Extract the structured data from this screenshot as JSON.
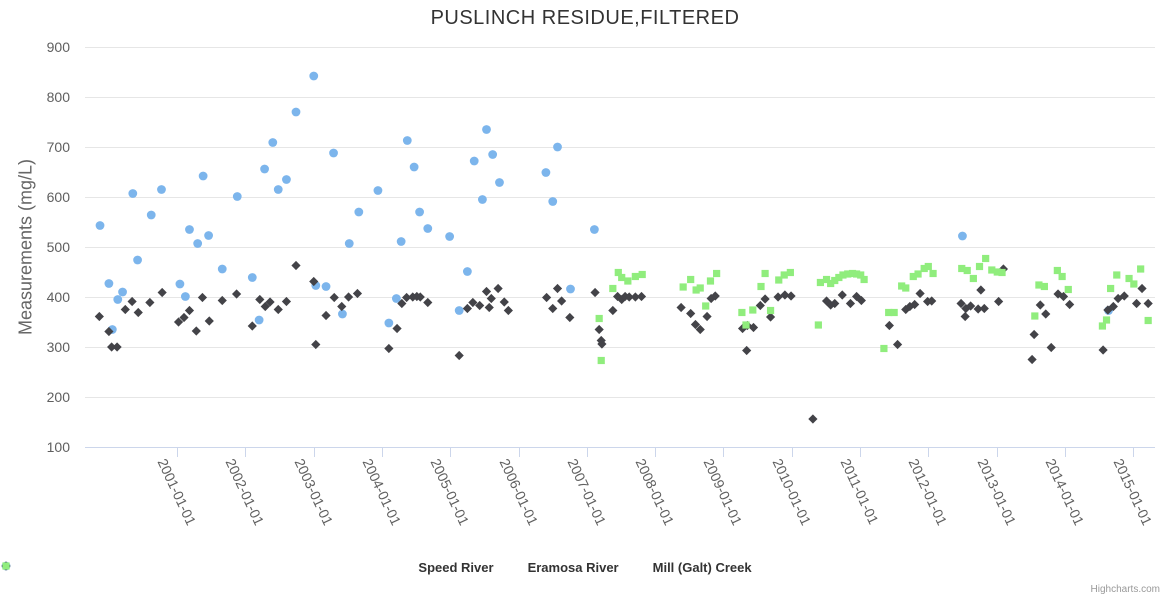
{
  "chart_data": {
    "type": "scatter",
    "title": "PUSLINCH RESIDUE,FILTERED",
    "ylabel": "Measurements (mg/L)",
    "credit": "Highcharts.com",
    "ylim": [
      100,
      900
    ],
    "yticks": [
      100,
      200,
      300,
      400,
      500,
      600,
      700,
      800,
      900
    ],
    "xlim": [
      1999.65,
      2015.32
    ],
    "xticks": [
      2001,
      2002,
      2003,
      2004,
      2005,
      2006,
      2007,
      2008,
      2009,
      2010,
      2011,
      2012,
      2013,
      2014,
      2015
    ],
    "xtick_labels": [
      "2001-01-01",
      "2002-01-01",
      "2003-01-01",
      "2004-01-01",
      "2005-01-01",
      "2006-01-01",
      "2007-01-01",
      "2008-01-01",
      "2009-01-01",
      "2010-01-01",
      "2011-01-01",
      "2012-01-01",
      "2013-01-01",
      "2014-01-01",
      "2015-01-01"
    ],
    "grid": "horizontal",
    "legend_position": "bottom-center",
    "colors": {
      "gridline": "#e6e6e6",
      "axis_line": "#ccd6eb",
      "axis_label": "#606060",
      "title": "#333333",
      "legend_text": "#333333",
      "credit_text": "#999999"
    },
    "series": [
      {
        "name": "Speed River",
        "marker": "circle",
        "color": "#7cb5ec",
        "points": [
          [
            1999.87,
            543
          ],
          [
            2000.0,
            427
          ],
          [
            2000.05,
            335
          ],
          [
            2000.13,
            395
          ],
          [
            2000.2,
            410
          ],
          [
            2000.35,
            607
          ],
          [
            2000.42,
            474
          ],
          [
            2000.62,
            564
          ],
          [
            2000.77,
            615
          ],
          [
            2001.04,
            426
          ],
          [
            2001.12,
            401
          ],
          [
            2001.18,
            535
          ],
          [
            2001.3,
            507
          ],
          [
            2001.38,
            642
          ],
          [
            2001.46,
            523
          ],
          [
            2001.66,
            456
          ],
          [
            2001.88,
            601
          ],
          [
            2002.1,
            439
          ],
          [
            2002.2,
            354
          ],
          [
            2002.28,
            656
          ],
          [
            2002.4,
            709
          ],
          [
            2002.48,
            615
          ],
          [
            2002.6,
            635
          ],
          [
            2002.74,
            770
          ],
          [
            2003.0,
            842
          ],
          [
            2003.03,
            423
          ],
          [
            2003.18,
            421
          ],
          [
            2003.29,
            688
          ],
          [
            2003.42,
            366
          ],
          [
            2003.52,
            507
          ],
          [
            2003.66,
            570
          ],
          [
            2003.94,
            613
          ],
          [
            2004.1,
            348
          ],
          [
            2004.21,
            397
          ],
          [
            2004.28,
            511
          ],
          [
            2004.37,
            713
          ],
          [
            2004.47,
            660
          ],
          [
            2004.55,
            570
          ],
          [
            2004.67,
            537
          ],
          [
            2004.99,
            521
          ],
          [
            2005.13,
            373
          ],
          [
            2005.25,
            451
          ],
          [
            2005.35,
            672
          ],
          [
            2005.47,
            595
          ],
          [
            2005.53,
            735
          ],
          [
            2005.62,
            685
          ],
          [
            2005.72,
            629
          ],
          [
            2006.4,
            649
          ],
          [
            2006.5,
            591
          ],
          [
            2006.57,
            700
          ],
          [
            2006.76,
            416
          ],
          [
            2007.11,
            535
          ],
          [
            2012.5,
            522
          ],
          [
            2014.64,
            373
          ]
        ]
      },
      {
        "name": "Eramosa River",
        "marker": "diamond",
        "color": "#434348",
        "points": [
          [
            1999.86,
            361
          ],
          [
            2000.0,
            331
          ],
          [
            2000.04,
            300
          ],
          [
            2000.12,
            300
          ],
          [
            2000.24,
            375
          ],
          [
            2000.34,
            391
          ],
          [
            2000.43,
            369
          ],
          [
            2000.6,
            389
          ],
          [
            2000.78,
            409
          ],
          [
            2001.02,
            350
          ],
          [
            2001.1,
            359
          ],
          [
            2001.18,
            373
          ],
          [
            2001.28,
            332
          ],
          [
            2001.37,
            399
          ],
          [
            2001.47,
            352
          ],
          [
            2001.66,
            393
          ],
          [
            2001.87,
            406
          ],
          [
            2002.1,
            342
          ],
          [
            2002.21,
            395
          ],
          [
            2002.29,
            381
          ],
          [
            2002.36,
            390
          ],
          [
            2002.48,
            375
          ],
          [
            2002.6,
            391
          ],
          [
            2002.74,
            463
          ],
          [
            2003.0,
            431
          ],
          [
            2003.03,
            305
          ],
          [
            2003.18,
            363
          ],
          [
            2003.3,
            399
          ],
          [
            2003.41,
            381
          ],
          [
            2003.51,
            400
          ],
          [
            2003.64,
            407
          ],
          [
            2004.1,
            297
          ],
          [
            2004.22,
            337
          ],
          [
            2004.29,
            387
          ],
          [
            2004.36,
            399
          ],
          [
            2004.45,
            400
          ],
          [
            2004.51,
            401
          ],
          [
            2004.56,
            400
          ],
          [
            2004.67,
            389
          ],
          [
            2005.13,
            283
          ],
          [
            2005.25,
            377
          ],
          [
            2005.33,
            389
          ],
          [
            2005.43,
            383
          ],
          [
            2005.53,
            411
          ],
          [
            2005.57,
            379
          ],
          [
            2005.6,
            397
          ],
          [
            2005.7,
            417
          ],
          [
            2005.79,
            390
          ],
          [
            2005.85,
            373
          ],
          [
            2006.41,
            399
          ],
          [
            2006.5,
            377
          ],
          [
            2006.57,
            417
          ],
          [
            2006.63,
            392
          ],
          [
            2006.75,
            359
          ],
          [
            2007.12,
            409
          ],
          [
            2007.18,
            335
          ],
          [
            2007.21,
            313
          ],
          [
            2007.22,
            306
          ],
          [
            2007.38,
            373
          ],
          [
            2007.45,
            401
          ],
          [
            2007.51,
            395
          ],
          [
            2007.56,
            401
          ],
          [
            2007.62,
            400
          ],
          [
            2007.71,
            400
          ],
          [
            2007.8,
            401
          ],
          [
            2008.38,
            379
          ],
          [
            2008.52,
            367
          ],
          [
            2008.59,
            345
          ],
          [
            2008.66,
            335
          ],
          [
            2008.76,
            361
          ],
          [
            2008.82,
            397
          ],
          [
            2008.88,
            402
          ],
          [
            2009.28,
            337
          ],
          [
            2009.34,
            293
          ],
          [
            2009.35,
            343
          ],
          [
            2009.44,
            339
          ],
          [
            2009.54,
            383
          ],
          [
            2009.61,
            396
          ],
          [
            2009.69,
            360
          ],
          [
            2009.8,
            400
          ],
          [
            2009.9,
            404
          ],
          [
            2009.99,
            402
          ],
          [
            2010.31,
            156
          ],
          [
            2010.51,
            392
          ],
          [
            2010.57,
            384
          ],
          [
            2010.63,
            387
          ],
          [
            2010.74,
            404
          ],
          [
            2010.86,
            387
          ],
          [
            2010.95,
            401
          ],
          [
            2011.02,
            393
          ],
          [
            2011.43,
            343
          ],
          [
            2011.55,
            305
          ],
          [
            2011.67,
            375
          ],
          [
            2011.73,
            381
          ],
          [
            2011.8,
            385
          ],
          [
            2011.88,
            407
          ],
          [
            2011.99,
            391
          ],
          [
            2012.05,
            392
          ],
          [
            2012.48,
            387
          ],
          [
            2012.54,
            361
          ],
          [
            2012.55,
            377
          ],
          [
            2012.62,
            382
          ],
          [
            2012.73,
            376
          ],
          [
            2012.77,
            414
          ],
          [
            2012.82,
            377
          ],
          [
            2013.03,
            391
          ],
          [
            2013.1,
            456
          ],
          [
            2013.52,
            275
          ],
          [
            2013.55,
            325
          ],
          [
            2013.64,
            384
          ],
          [
            2013.72,
            366
          ],
          [
            2013.8,
            299
          ],
          [
            2013.9,
            406
          ],
          [
            2013.98,
            401
          ],
          [
            2014.07,
            385
          ],
          [
            2014.56,
            294
          ],
          [
            2014.63,
            374
          ],
          [
            2014.71,
            381
          ],
          [
            2014.78,
            397
          ],
          [
            2014.87,
            402
          ],
          [
            2015.05,
            387
          ],
          [
            2015.13,
            417
          ],
          [
            2015.22,
            387
          ]
        ]
      },
      {
        "name": "Mill (Galt) Creek",
        "marker": "square",
        "color": "#90ed7d",
        "points": [
          [
            2007.18,
            357
          ],
          [
            2007.21,
            273
          ],
          [
            2007.38,
            417
          ],
          [
            2007.46,
            449
          ],
          [
            2007.51,
            439
          ],
          [
            2007.6,
            432
          ],
          [
            2007.71,
            441
          ],
          [
            2007.81,
            445
          ],
          [
            2008.41,
            420
          ],
          [
            2008.52,
            435
          ],
          [
            2008.6,
            414
          ],
          [
            2008.66,
            418
          ],
          [
            2008.74,
            382
          ],
          [
            2008.81,
            432
          ],
          [
            2008.9,
            447
          ],
          [
            2009.27,
            369
          ],
          [
            2009.33,
            344
          ],
          [
            2009.43,
            374
          ],
          [
            2009.55,
            421
          ],
          [
            2009.61,
            447
          ],
          [
            2009.69,
            373
          ],
          [
            2009.81,
            434
          ],
          [
            2009.89,
            444
          ],
          [
            2009.98,
            449
          ],
          [
            2010.39,
            344
          ],
          [
            2010.42,
            429
          ],
          [
            2010.51,
            435
          ],
          [
            2010.57,
            427
          ],
          [
            2010.63,
            433
          ],
          [
            2010.69,
            439
          ],
          [
            2010.75,
            444
          ],
          [
            2010.82,
            446
          ],
          [
            2010.89,
            447
          ],
          [
            2010.95,
            446
          ],
          [
            2011.01,
            444
          ],
          [
            2011.06,
            435
          ],
          [
            2011.35,
            297
          ],
          [
            2011.42,
            369
          ],
          [
            2011.5,
            369
          ],
          [
            2011.61,
            422
          ],
          [
            2011.67,
            418
          ],
          [
            2011.78,
            441
          ],
          [
            2011.85,
            446
          ],
          [
            2011.94,
            457
          ],
          [
            2012.0,
            461
          ],
          [
            2012.07,
            447
          ],
          [
            2012.49,
            457
          ],
          [
            2012.57,
            453
          ],
          [
            2012.66,
            437
          ],
          [
            2012.75,
            461
          ],
          [
            2012.84,
            477
          ],
          [
            2012.93,
            454
          ],
          [
            2013.01,
            450
          ],
          [
            2013.08,
            449
          ],
          [
            2013.56,
            362
          ],
          [
            2013.62,
            424
          ],
          [
            2013.7,
            421
          ],
          [
            2013.89,
            453
          ],
          [
            2013.96,
            441
          ],
          [
            2014.05,
            415
          ],
          [
            2014.55,
            342
          ],
          [
            2014.61,
            354
          ],
          [
            2014.67,
            417
          ],
          [
            2014.76,
            444
          ],
          [
            2014.94,
            437
          ],
          [
            2015.01,
            426
          ],
          [
            2015.11,
            456
          ],
          [
            2015.22,
            353
          ]
        ]
      }
    ]
  }
}
